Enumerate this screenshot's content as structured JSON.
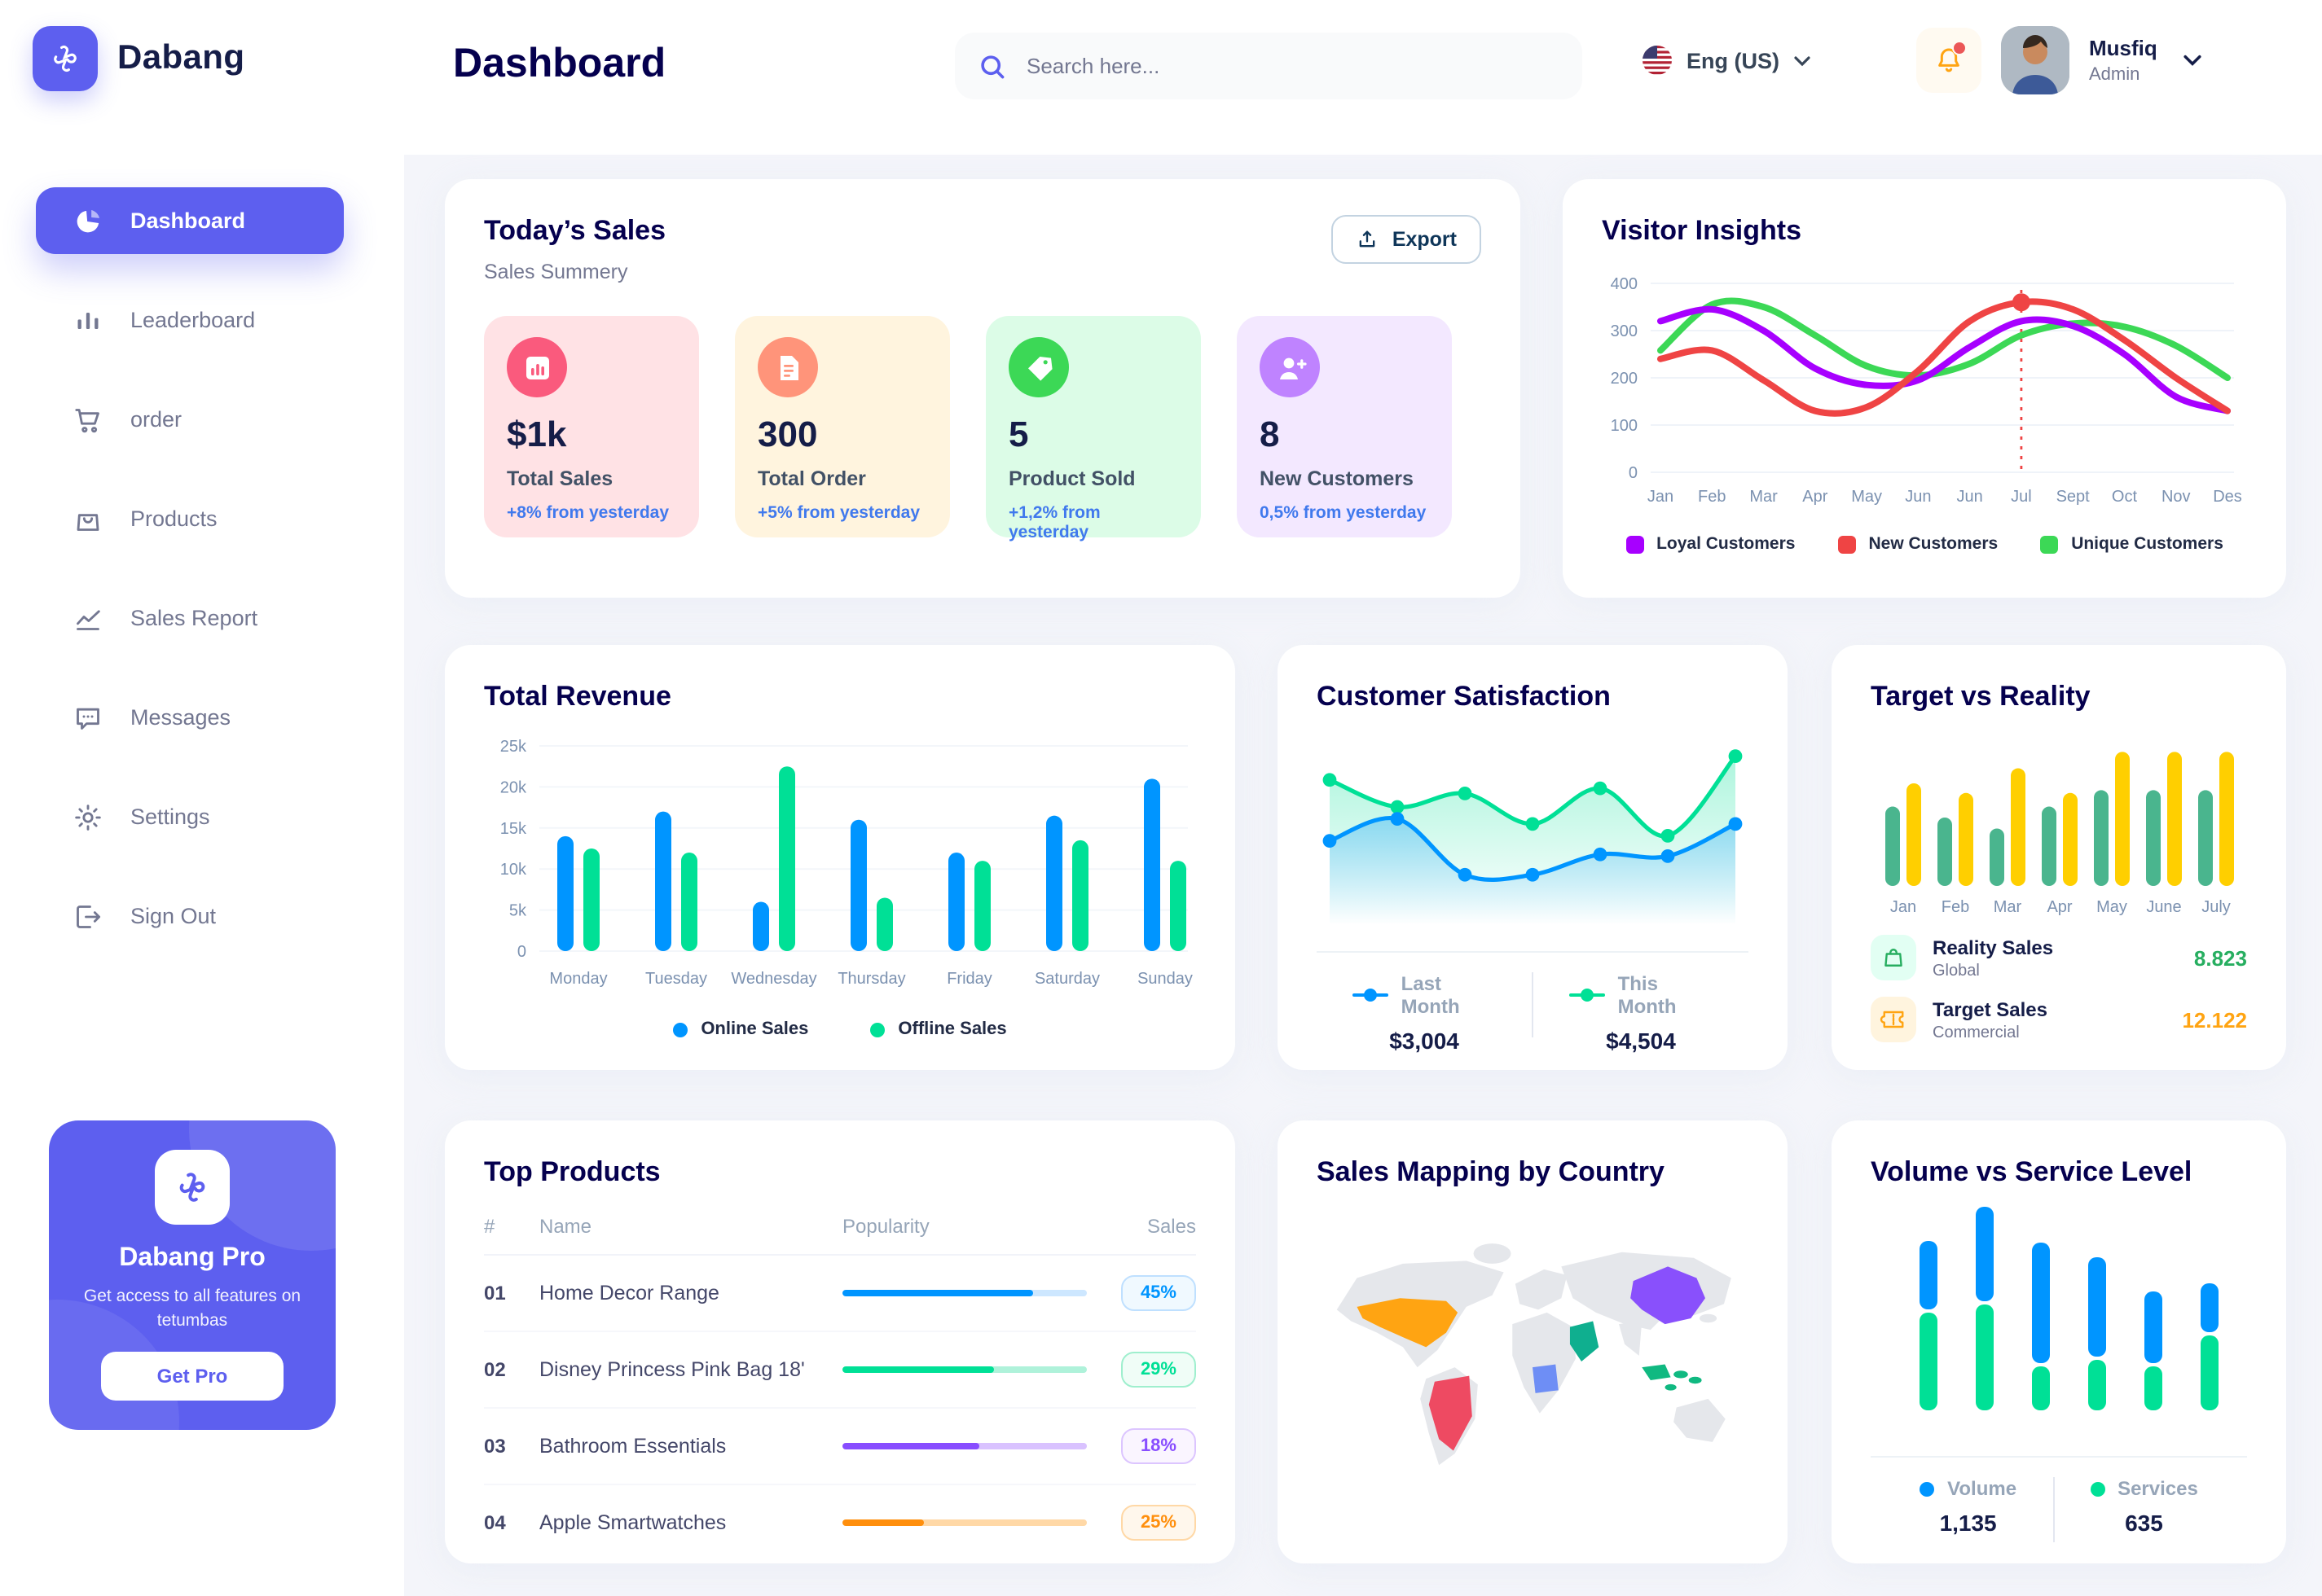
{
  "app": {
    "brand": "Dabang",
    "page_title": "Dashboard"
  },
  "header": {
    "search_placeholder": "Search here...",
    "language": "Eng (US)",
    "user": {
      "name": "Musfiq",
      "role": "Admin"
    }
  },
  "sidebar": {
    "items": [
      {
        "label": "Dashboard",
        "icon": "dashboard",
        "active": true
      },
      {
        "label": "Leaderboard",
        "icon": "leaderboard",
        "active": false
      },
      {
        "label": "order",
        "icon": "order",
        "active": false
      },
      {
        "label": "Products",
        "icon": "products",
        "active": false
      },
      {
        "label": "Sales Report",
        "icon": "sales",
        "active": false
      },
      {
        "label": "Messages",
        "icon": "messages",
        "active": false
      },
      {
        "label": "Settings",
        "icon": "settings",
        "active": false
      },
      {
        "label": "Sign Out",
        "icon": "signout",
        "active": false
      }
    ],
    "pro": {
      "title": "Dabang Pro",
      "desc": "Get access to all features on tetumbas",
      "button": "Get Pro"
    }
  },
  "today_sales": {
    "title": "Today’s Sales",
    "subtitle": "Sales Summery",
    "export_label": "Export",
    "cards": [
      {
        "value": "$1k",
        "label": "Total Sales",
        "delta": "+8% from yesterday",
        "bg": "#FFE2E5",
        "accent": "#FA5A7D",
        "icon": "chart"
      },
      {
        "value": "300",
        "label": "Total Order",
        "delta": "+5% from yesterday",
        "bg": "#FFF4DE",
        "accent": "#FF947A",
        "icon": "doc"
      },
      {
        "value": "5",
        "label": "Product Sold",
        "delta": "+1,2% from yesterday",
        "bg": "#DCFCE7",
        "accent": "#3CD856",
        "icon": "tag"
      },
      {
        "value": "8",
        "label": "New Customers",
        "delta": "0,5% from yesterday",
        "bg": "#F3E8FF",
        "accent": "#BF83FF",
        "icon": "user"
      }
    ]
  },
  "visitor_insights": {
    "title": "Visitor Insights",
    "chart_data": {
      "type": "line",
      "x": [
        "Jan",
        "Feb",
        "Mar",
        "Apr",
        "May",
        "Jun",
        "Jun",
        "Jul",
        "Sept",
        "Oct",
        "Nov",
        "Des"
      ],
      "ylim": [
        0,
        400
      ],
      "yticks": [
        0,
        100,
        200,
        300,
        400
      ],
      "series": [
        {
          "name": "Unique Customers",
          "color": "#3CD856",
          "values": [
            258,
            355,
            350,
            290,
            225,
            205,
            230,
            290,
            315,
            308,
            268,
            200
          ]
        },
        {
          "name": "Loyal Customers",
          "color": "#A700FF",
          "values": [
            320,
            345,
            300,
            220,
            185,
            195,
            265,
            320,
            310,
            250,
            160,
            130
          ]
        },
        {
          "name": "New Customers",
          "color": "#EF4444",
          "values": [
            240,
            258,
            195,
            130,
            138,
            215,
            320,
            360,
            345,
            280,
            200,
            130
          ]
        }
      ],
      "legend_order": [
        "Loyal Customers",
        "New Customers",
        "Unique Customers"
      ],
      "marker": {
        "x_index": 7,
        "value": 360,
        "color": "#EF4444"
      }
    }
  },
  "total_revenue": {
    "title": "Total Revenue",
    "chart_data": {
      "type": "bar",
      "categories": [
        "Monday",
        "Tuesday",
        "Wednesday",
        "Thursday",
        "Friday",
        "Saturday",
        "Sunday"
      ],
      "yticks_k": [
        0,
        5,
        10,
        15,
        20,
        25
      ],
      "series": [
        {
          "name": "Online Sales",
          "color": "#0095FF",
          "values_k": [
            14,
            17,
            6,
            16,
            12,
            16.5,
            21
          ]
        },
        {
          "name": "Offline Sales",
          "color": "#00E096",
          "values_k": [
            12.5,
            12,
            22.5,
            6.5,
            11,
            13.5,
            11
          ]
        }
      ]
    }
  },
  "customer_satisfaction": {
    "title": "Customer Satisfaction",
    "chart_data": {
      "type": "area",
      "series": [
        {
          "name": "This Month",
          "color": "#00E096",
          "value": "$4,504",
          "values": [
            78,
            62,
            70,
            52,
            73,
            45,
            92
          ]
        },
        {
          "name": "Last Month",
          "color": "#0095FF",
          "value": "$3,004",
          "values": [
            42,
            55,
            22,
            22,
            34,
            33,
            52
          ]
        }
      ],
      "legend_order": [
        "Last Month",
        "This Month"
      ]
    }
  },
  "target_vs_reality": {
    "title": "Target vs Reality",
    "chart_data": {
      "type": "bar",
      "categories": [
        "Jan",
        "Feb",
        "Mar",
        "Apr",
        "May",
        "June",
        "July"
      ],
      "series": [
        {
          "name": "Reality Sales",
          "color": "#4AB58E",
          "values": [
            58,
            50,
            42,
            58,
            70,
            70,
            70
          ]
        },
        {
          "name": "Target Sales",
          "color": "#FFCF00",
          "values": [
            75,
            68,
            86,
            68,
            98,
            98,
            98
          ]
        }
      ],
      "legend": [
        {
          "title": "Reality Sales",
          "sub": "Global",
          "value": "8.823",
          "value_color": "#27AE60",
          "icon": "bag",
          "icon_bg": "#E2FFF3",
          "icon_color": "#27AE60"
        },
        {
          "title": "Target Sales",
          "sub": "Commercial",
          "value": "12.122",
          "value_color": "#FFA412",
          "icon": "ticket",
          "icon_bg": "#FFF4DE",
          "icon_color": "#FFA412"
        }
      ]
    }
  },
  "top_products": {
    "title": "Top Products",
    "columns": [
      "#",
      "Name",
      "Popularity",
      "Sales"
    ],
    "rows": [
      {
        "num": "01",
        "name": "Home Decor Range",
        "popularity_pct": 78,
        "sales": "45%",
        "color": "#0095FF",
        "track": "#CDE7FF",
        "badge_bg": "#F0F9FF",
        "badge_border": "#BFE0FF"
      },
      {
        "num": "02",
        "name": "Disney Princess Pink Bag 18'",
        "popularity_pct": 62,
        "sales": "29%",
        "color": "#00E096",
        "track": "#AFF2DA",
        "badge_bg": "#F0FDF7",
        "badge_border": "#9FEFCE"
      },
      {
        "num": "03",
        "name": "Bathroom Essentials",
        "popularity_pct": 56,
        "sales": "18%",
        "color": "#884DFF",
        "track": "#D9C2FF",
        "badge_bg": "#FAF5FF",
        "badge_border": "#DCC5FF"
      },
      {
        "num": "04",
        "name": "Apple Smartwatches",
        "popularity_pct": 33,
        "sales": "25%",
        "color": "#FF8F0D",
        "track": "#FFD8A6",
        "badge_bg": "#FFF7EC",
        "badge_border": "#FFD8A6"
      }
    ]
  },
  "sales_map": {
    "title": "Sales Mapping by Country",
    "land_color": "#E5E7EB",
    "colors": {
      "usa": "#FFA412",
      "brazil": "#EE4A62",
      "saudi": "#0FAF8F",
      "drc": "#6E8EF5",
      "china": "#8950FC",
      "indonesia": "#10B981"
    }
  },
  "volume_service": {
    "title": "Volume vs Service Level",
    "chart_data": {
      "type": "stacked-bar",
      "series": [
        {
          "name": "Volume",
          "color": "#0095FF",
          "total": "1,135",
          "values": [
            42,
            58,
            74,
            61,
            44,
            30
          ]
        },
        {
          "name": "Services",
          "color": "#00E096",
          "total": "635",
          "values": [
            60,
            65,
            27,
            31,
            27,
            46
          ]
        }
      ]
    }
  }
}
